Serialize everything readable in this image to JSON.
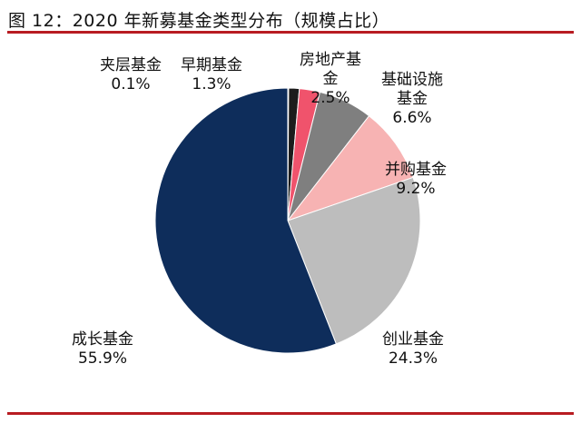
{
  "chart_data": {
    "type": "pie",
    "title": "图 12：2020 年新募基金类型分布（规模占比）",
    "start": "12 o'clock",
    "direction": "clockwise",
    "slices": [
      {
        "label": "夹层基金",
        "value": 0.1,
        "value_label": "0.1%",
        "color": "#3a2a2a"
      },
      {
        "label": "早期基金",
        "value": 1.3,
        "value_label": "1.3%",
        "color": "#1c1c1c"
      },
      {
        "label": "房地产基金",
        "value": 2.5,
        "value_label": "2.5%",
        "color": "#f0536c"
      },
      {
        "label": "基础设施基金",
        "value": 6.6,
        "value_label": "6.6%",
        "color": "#7f7f7f"
      },
      {
        "label": "并购基金",
        "value": 9.2,
        "value_label": "9.2%",
        "color": "#f7b3b3"
      },
      {
        "label": "创业基金",
        "value": 24.3,
        "value_label": "24.3%",
        "color": "#bdbdbd"
      },
      {
        "label": "成长基金",
        "value": 55.9,
        "value_label": "55.9%",
        "color": "#0e2d5b"
      }
    ]
  }
}
